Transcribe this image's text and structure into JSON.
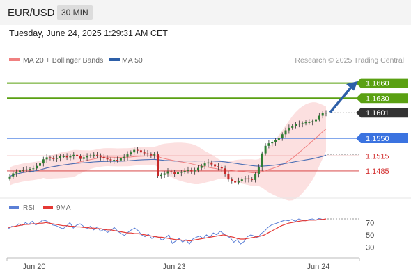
{
  "header": {
    "symbol": "EUR/USD",
    "timeframe": "30 MIN"
  },
  "datetime": "Tuesday, June 24, 2025 1:29:31 AM CET",
  "legend": {
    "ma20_label": "MA 20 + Bollinger Bands",
    "ma50_label": "MA 50"
  },
  "credit": "Research © 2025 Trading Central",
  "colors": {
    "up": "#2e7d32",
    "down": "#c62828",
    "ma20": "#f08080",
    "ma50": "#4a6fb5",
    "band_fill": "#fbd5d5",
    "target": "#5aa012",
    "pivot": "#3b73e0",
    "support": "#d32f2f",
    "arrow": "#2d5fa8",
    "price_tag": "#333333",
    "rsi": "#5b7fd6",
    "rsi_ma": "#e53935"
  },
  "chart_data": [
    {
      "type": "line",
      "subtype": "candlestick",
      "ylim": [
        1.1435,
        1.169
      ],
      "levels": [
        {
          "value": 1.166,
          "label": "1.1660",
          "kind": "resistance"
        },
        {
          "value": 1.163,
          "label": "1.1630",
          "kind": "resistance"
        },
        {
          "value": 1.1601,
          "label": "1.1601",
          "kind": "current-price"
        },
        {
          "value": 1.155,
          "label": "1.1550",
          "kind": "pivot"
        },
        {
          "value": 1.1515,
          "label": "1.1515",
          "kind": "support"
        },
        {
          "value": 1.1485,
          "label": "1.1485",
          "kind": "support"
        }
      ],
      "series": [
        {
          "name": "MA 20 + Bollinger Bands",
          "type": "line"
        },
        {
          "name": "MA 50",
          "type": "line"
        }
      ],
      "candle_closes": [
        1.1474,
        1.148,
        1.1482,
        1.1486,
        1.1487,
        1.1488,
        1.1489,
        1.149,
        1.1495,
        1.15,
        1.1508,
        1.1512,
        1.151,
        1.1509,
        1.1511,
        1.1514,
        1.1514,
        1.1512,
        1.1515,
        1.1517,
        1.1514,
        1.1509,
        1.1512,
        1.1514,
        1.1516,
        1.1517,
        1.1516,
        1.1513,
        1.151,
        1.1508,
        1.1506,
        1.1507,
        1.1506,
        1.151,
        1.1513,
        1.1518,
        1.1522,
        1.1527,
        1.1526,
        1.1522,
        1.152,
        1.1518,
        1.1516,
        1.1518,
        1.1475,
        1.1477,
        1.148,
        1.1484,
        1.1482,
        1.1478,
        1.1482,
        1.1483,
        1.1485,
        1.1487,
        1.1484,
        1.1486,
        1.1491,
        1.1495,
        1.15,
        1.1502,
        1.1498,
        1.1494,
        1.1492,
        1.149,
        1.1478,
        1.1468,
        1.1465,
        1.1462,
        1.1465,
        1.1468,
        1.147,
        1.1469,
        1.1467,
        1.1478,
        1.1492,
        1.152,
        1.1535,
        1.154,
        1.1542,
        1.1546,
        1.155,
        1.1558,
        1.1566,
        1.1571,
        1.1575,
        1.1578,
        1.1579,
        1.158,
        1.1582,
        1.1582,
        1.1584,
        1.1588,
        1.1595,
        1.16,
        1.1601
      ],
      "x_ticks": [
        "Jun 20",
        "Jun 23",
        "Jun 24"
      ]
    },
    {
      "type": "line",
      "ylim": [
        18,
        84
      ],
      "legend": [
        "RSI",
        "9MA"
      ],
      "y_ticks": [
        70,
        50,
        30
      ],
      "series": [
        {
          "name": "RSI",
          "values": [
            60,
            64,
            63,
            68,
            65,
            70,
            67,
            72,
            66,
            69,
            74,
            73,
            70,
            66,
            65,
            62,
            60,
            64,
            70,
            61,
            66,
            68,
            64,
            60,
            64,
            58,
            63,
            56,
            59,
            54,
            57,
            62,
            56,
            52,
            49,
            54,
            58,
            61,
            57,
            50,
            47,
            51,
            44,
            48,
            46,
            41,
            45,
            50,
            36,
            40,
            44,
            38,
            42,
            35,
            43,
            46,
            48,
            44,
            50,
            46,
            53,
            50,
            56,
            52,
            48,
            45,
            38,
            42,
            35,
            39,
            47,
            50,
            48,
            45,
            52,
            56,
            62,
            66,
            68,
            70,
            72,
            74,
            73,
            75,
            72,
            76,
            74,
            73,
            75,
            76,
            74,
            77,
            75,
            76
          ]
        },
        {
          "name": "9MA",
          "values": [
            62,
            63,
            64,
            65,
            66,
            67,
            67,
            68,
            68,
            69,
            69,
            70,
            69,
            68,
            67,
            66,
            65,
            65,
            64,
            64,
            63,
            63,
            62,
            62,
            61,
            61,
            60,
            60,
            59,
            58,
            58,
            57,
            56,
            55,
            54,
            53,
            53,
            52,
            52,
            51,
            50,
            49,
            48,
            47,
            46,
            46,
            45,
            44,
            43,
            42,
            42,
            41,
            41,
            40,
            41,
            42,
            43,
            44,
            45,
            46,
            47,
            48,
            49,
            50,
            49,
            47,
            46,
            44,
            43,
            43,
            44,
            45,
            46,
            47,
            48,
            50,
            53,
            56,
            59,
            62,
            65,
            67,
            69,
            70,
            71,
            72,
            73,
            73,
            74,
            74,
            74,
            75,
            75,
            76
          ]
        }
      ]
    }
  ]
}
